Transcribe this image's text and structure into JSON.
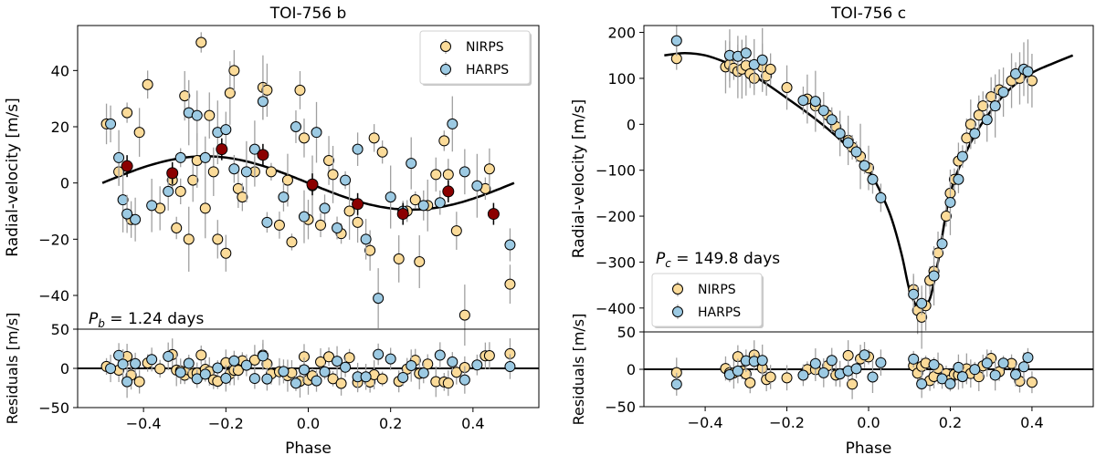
{
  "colors": {
    "nirps": "#fbdb99",
    "harps": "#9ccae3",
    "binned": "#8b0000",
    "model": "#000000",
    "errorbar": "#a0a0a0"
  },
  "chart_data": [
    {
      "type": "scatter",
      "title": "TOI-756 b",
      "xlabel": "Phase",
      "ylabel": "Radial-velocity [m/s]",
      "residual_ylabel": "Residuals [m/s]",
      "xlim": [
        -0.56,
        0.56
      ],
      "ylim": [
        -52,
        56
      ],
      "residual_ylim": [
        -50,
        50
      ],
      "xticks": [
        -0.4,
        -0.2,
        0.0,
        0.2,
        0.4
      ],
      "xtick_labels": [
        "−0.4",
        "−0.2",
        "0.0",
        "0.2",
        "0.4"
      ],
      "yticks": [
        -40,
        -20,
        0,
        20,
        40
      ],
      "ytick_labels": [
        "−40",
        "−20",
        "0",
        "20",
        "40"
      ],
      "residual_yticks": [
        -50,
        0,
        50
      ],
      "residual_ytick_labels": [
        "−50",
        "0",
        "50"
      ],
      "annotation": "P_b = 1.24 days",
      "annotation_prefix": "P",
      "annotation_sub": "b",
      "annotation_rest": " = 1.24 days",
      "legend": {
        "position": "top-right",
        "entries": [
          "NIRPS",
          "HARPS"
        ]
      },
      "model": {
        "type": "sine",
        "amplitude": 9.5,
        "phase_of_max": -0.25,
        "range": [
          -0.5,
          0.5
        ]
      },
      "series": [
        {
          "name": "NIRPS",
          "x": [
            -0.49,
            -0.46,
            -0.44,
            -0.43,
            -0.41,
            -0.39,
            -0.36,
            -0.33,
            -0.32,
            -0.31,
            -0.3,
            -0.29,
            -0.28,
            -0.27,
            -0.26,
            -0.25,
            -0.24,
            -0.23,
            -0.22,
            -0.2,
            -0.19,
            -0.18,
            -0.17,
            -0.16,
            -0.13,
            -0.11,
            -0.1,
            -0.09,
            -0.07,
            -0.05,
            -0.04,
            -0.02,
            -0.01,
            0.0,
            0.01,
            0.03,
            0.05,
            0.06,
            0.08,
            0.1,
            0.12,
            0.15,
            0.16,
            0.18,
            0.22,
            0.24,
            0.26,
            0.27,
            0.29,
            0.31,
            0.33,
            0.34,
            0.36,
            0.38,
            0.43,
            0.44,
            0.49
          ],
          "y": [
            21,
            4,
            25,
            -13,
            18,
            35,
            -9,
            1,
            -16,
            -3,
            31,
            -20,
            1,
            8,
            50,
            -9,
            24,
            4,
            -20,
            -25,
            32,
            40,
            -2,
            -5,
            4,
            34,
            33,
            4,
            -15,
            1,
            -21,
            33,
            16,
            -13,
            -1,
            -15,
            8,
            3,
            -18,
            -10,
            -14,
            -24,
            16,
            11,
            -27,
            -10,
            -6,
            -28,
            -8,
            3,
            15,
            3,
            -17,
            -47,
            -2,
            5,
            -36
          ]
        },
        {
          "name": "HARPS",
          "x": [
            -0.48,
            -0.46,
            -0.45,
            -0.44,
            -0.42,
            -0.38,
            -0.34,
            -0.31,
            -0.29,
            -0.27,
            -0.25,
            -0.22,
            -0.2,
            -0.18,
            -0.15,
            -0.13,
            -0.11,
            -0.1,
            -0.06,
            -0.03,
            -0.01,
            0.02,
            0.04,
            0.07,
            0.09,
            0.12,
            0.14,
            0.17,
            0.2,
            0.23,
            0.25,
            0.28,
            0.32,
            0.35,
            0.38,
            0.41,
            0.49
          ],
          "y": [
            21,
            9,
            -6,
            -11,
            -13,
            -8,
            -3,
            9,
            25,
            24,
            9,
            18,
            19,
            5,
            4,
            12,
            29,
            -14,
            -5,
            20,
            -12,
            18,
            -9,
            -16,
            1,
            12,
            -20,
            -41,
            -5,
            -10,
            7,
            -8,
            -7,
            21,
            4,
            -1,
            -22
          ]
        },
        {
          "name": "Binned",
          "x": [
            -0.44,
            -0.33,
            -0.21,
            -0.11,
            0.01,
            0.12,
            0.23,
            0.34,
            0.45
          ],
          "y": [
            6,
            3.5,
            12,
            10,
            -0.5,
            -7.5,
            -11,
            -3,
            -11
          ]
        }
      ]
    },
    {
      "type": "scatter",
      "title": "TOI-756 c",
      "xlabel": "Phase",
      "ylabel": "Radial-velocity [m/s]",
      "residual_ylabel": "Residuals [m/s]",
      "xlim": [
        -0.55,
        0.55
      ],
      "ylim": [
        -452,
        215
      ],
      "residual_ylim": [
        -50,
        50
      ],
      "xticks": [
        -0.4,
        -0.2,
        0.0,
        0.2,
        0.4
      ],
      "xtick_labels": [
        "−0.4",
        "−0.2",
        "0.0",
        "0.2",
        "0.4"
      ],
      "yticks": [
        -400,
        -300,
        -200,
        -100,
        0,
        100,
        200
      ],
      "ytick_labels": [
        "−400",
        "−300",
        "−200",
        "−100",
        "0",
        "100",
        "200"
      ],
      "residual_yticks": [
        -50,
        0,
        50
      ],
      "residual_ytick_labels": [
        "−50",
        "0",
        "50"
      ],
      "annotation": "P_c = 149.8 days",
      "annotation_prefix": "P",
      "annotation_sub": "c",
      "annotation_rest": " = 149.8 days",
      "legend": {
        "position": "bottom-left",
        "entries": [
          "NIRPS",
          "HARPS"
        ]
      },
      "model": {
        "type": "eccentric",
        "curve_x": [
          -0.5,
          -0.45,
          -0.4,
          -0.35,
          -0.3,
          -0.25,
          -0.2,
          -0.15,
          -0.1,
          -0.05,
          0.0,
          0.05,
          0.08,
          0.1,
          0.12,
          0.13,
          0.15,
          0.17,
          0.2,
          0.25,
          0.3,
          0.35,
          0.4,
          0.45,
          0.5
        ],
        "curve_y": [
          150,
          155,
          150,
          135,
          115,
          88,
          57,
          25,
          -10,
          -50,
          -100,
          -190,
          -280,
          -360,
          -400,
          -402,
          -380,
          -300,
          -150,
          -40,
          30,
          80,
          112,
          132,
          150
        ]
      },
      "series": [
        {
          "name": "NIRPS",
          "x": [
            -0.47,
            -0.35,
            -0.34,
            -0.33,
            -0.32,
            -0.31,
            -0.3,
            -0.29,
            -0.28,
            -0.26,
            -0.25,
            -0.24,
            -0.2,
            -0.15,
            -0.13,
            -0.1,
            -0.08,
            -0.05,
            -0.04,
            -0.02,
            0.0,
            0.11,
            0.12,
            0.13,
            0.14,
            0.15,
            0.16,
            0.17,
            0.19,
            0.2,
            0.21,
            0.22,
            0.24,
            0.25,
            0.27,
            0.28,
            0.3,
            0.32,
            0.35,
            0.37,
            0.4
          ],
          "y": [
            143,
            125,
            130,
            122,
            115,
            120,
            128,
            110,
            100,
            125,
            105,
            120,
            80,
            55,
            40,
            20,
            -5,
            -35,
            -50,
            -70,
            -95,
            -360,
            -405,
            -420,
            -395,
            -340,
            -320,
            -280,
            -200,
            -150,
            -120,
            -80,
            -30,
            0,
            20,
            40,
            60,
            75,
            95,
            100,
            95
          ]
        },
        {
          "name": "HARPS",
          "x": [
            -0.47,
            -0.34,
            -0.32,
            -0.3,
            -0.28,
            -0.26,
            -0.16,
            -0.13,
            -0.11,
            -0.09,
            -0.07,
            -0.05,
            -0.03,
            -0.01,
            0.01,
            0.03,
            0.11,
            0.13,
            0.16,
            0.18,
            0.2,
            0.22,
            0.23,
            0.26,
            0.29,
            0.31,
            0.33,
            0.36,
            0.38,
            0.39
          ],
          "y": [
            182,
            150,
            148,
            155,
            130,
            140,
            52,
            50,
            30,
            10,
            -20,
            -40,
            -60,
            -90,
            -120,
            -160,
            -370,
            -390,
            -330,
            -260,
            -170,
            -120,
            -70,
            -20,
            10,
            40,
            70,
            110,
            120,
            115
          ]
        }
      ]
    }
  ]
}
